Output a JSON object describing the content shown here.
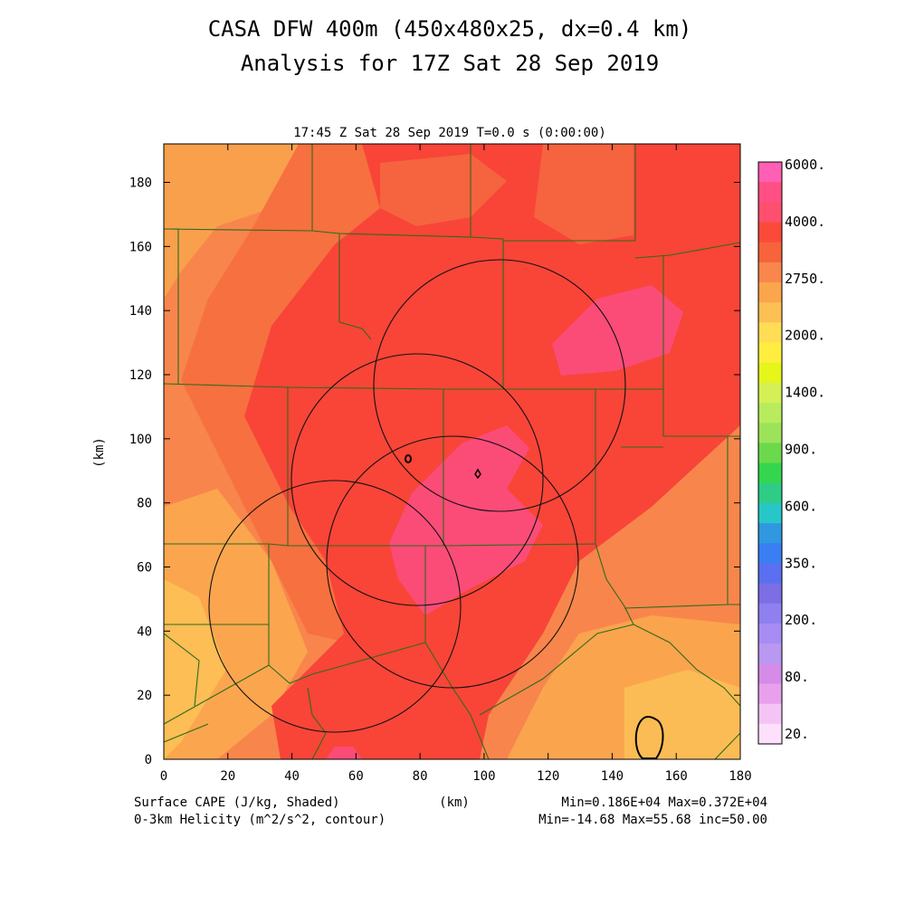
{
  "title_line1": "CASA DFW 400m (450x480x25, dx=0.4 km)",
  "title_line2": "Analysis for 17Z Sat 28 Sep 2019",
  "plot_header": "17:45 Z Sat 28 Sep 2019    T=0.0 s (0:00:00)",
  "xlabel": "(km)",
  "ylabel": "(km)",
  "footer": {
    "field1": "Surface CAPE (J/kg, Shaded)",
    "field2": "0-3km Helicity (m^2/s^2, contour)",
    "stats1": "Min=0.186E+04 Max=0.372E+04",
    "stats2": "Min=-14.68 Max=55.68 inc=50.00"
  },
  "colorbar": {
    "labels": [
      "6000.",
      "4000.",
      "2750.",
      "2000.",
      "1400.",
      "900.",
      "600.",
      "350.",
      "200.",
      "80.",
      "20."
    ],
    "colors": [
      "#ff5fb4",
      "#ff4f84",
      "#ff4f6e",
      "#fb4a3a",
      "#f7633a",
      "#f9864d",
      "#fba54c",
      "#fcc055",
      "#ffdd55",
      "#ffee40",
      "#e6f51a",
      "#d4f055",
      "#b8ec5c",
      "#9ce35a",
      "#6cd94c",
      "#34d64e",
      "#2ecc86",
      "#28c7c7",
      "#2f98e0",
      "#3a7ef4",
      "#5a70f0",
      "#7c6ee4",
      "#8f80f0",
      "#a78cf4",
      "#b898f0",
      "#d48ce8",
      "#e8a0ec",
      "#f4c4f4",
      "#fce0fc"
    ]
  },
  "chart_data": {
    "type": "heatmap",
    "title": "CASA DFW 400m (450x480x25, dx=0.4 km)",
    "subtitle": "Analysis for 17Z Sat 28 Sep 2019",
    "xlabel": "(km)",
    "ylabel": "(km)",
    "xlim": [
      0,
      180
    ],
    "ylim": [
      0,
      192
    ],
    "xticks": [
      0,
      20,
      40,
      60,
      80,
      100,
      120,
      140,
      160,
      180
    ],
    "yticks": [
      0,
      20,
      40,
      60,
      80,
      100,
      120,
      140,
      160,
      180
    ],
    "shaded_field": "Surface CAPE (J/kg)",
    "contour_field": "0-3km Helicity (m^2/s^2)",
    "cape_min": 1860,
    "cape_max": 3720,
    "helicity_min": -14.68,
    "helicity_max": 55.68,
    "contour_interval": 50.0,
    "colorbar_levels": [
      20,
      80,
      200,
      350,
      600,
      900,
      1400,
      2000,
      2750,
      4000,
      6000
    ],
    "radar_rings_km": [
      {
        "center": [
          105,
          116
        ],
        "radius": 39
      },
      {
        "center": [
          80,
          89
        ],
        "radius": 39
      },
      {
        "center": [
          91,
          62
        ],
        "radius": 39
      },
      {
        "center": [
          54,
          48
        ],
        "radius": 39
      }
    ]
  }
}
